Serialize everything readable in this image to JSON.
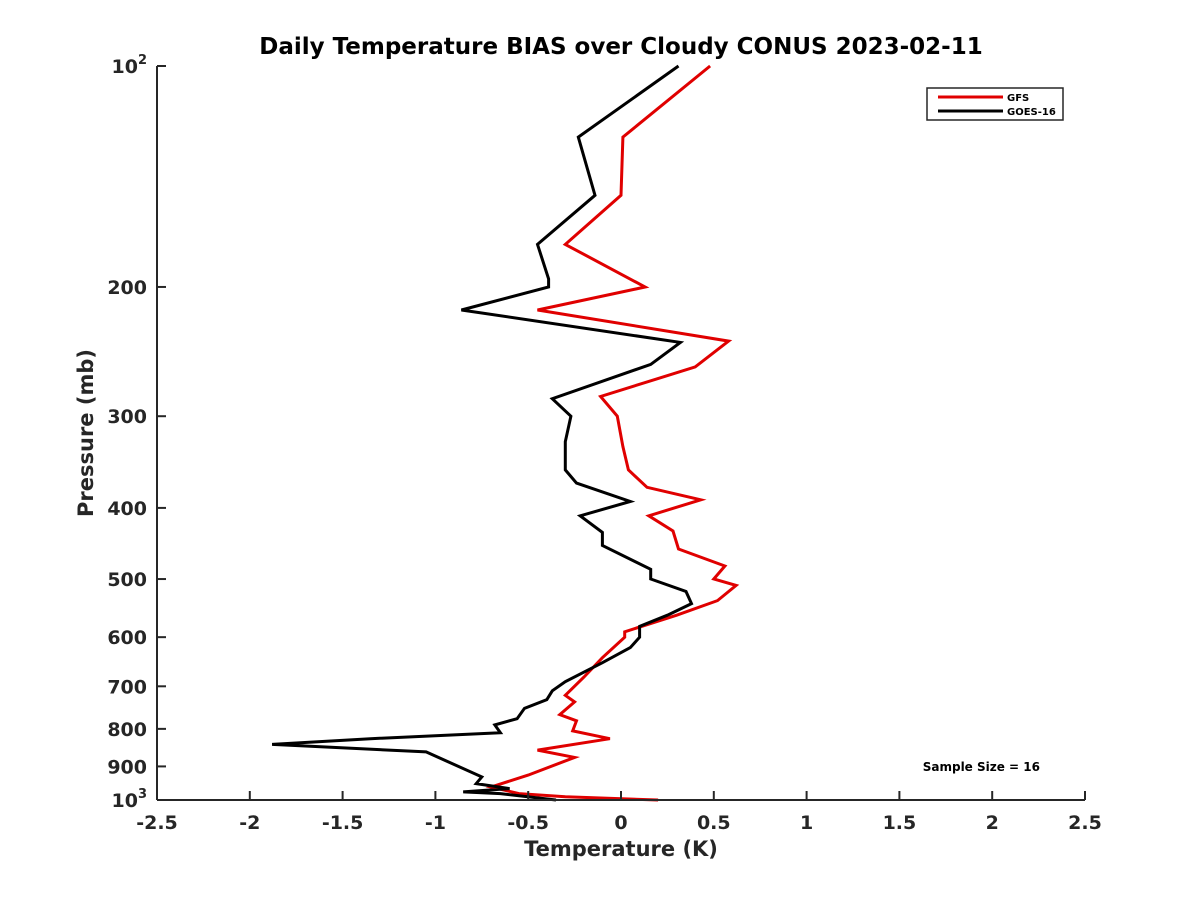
{
  "chart_data": {
    "type": "line",
    "title": "Daily Temperature BIAS over Cloudy CONUS 2023-02-11",
    "xlabel": "Temperature (K)",
    "ylabel": "Pressure (mb)",
    "xlim": [
      -2.5,
      2.5
    ],
    "ylim": [
      100,
      1000
    ],
    "y_scale": "log",
    "y_reversed": true,
    "grid": false,
    "legend_position": "top-right",
    "x_ticks": [
      -2.5,
      -2,
      -1.5,
      -1,
      -0.5,
      0,
      0.5,
      1,
      1.5,
      2,
      2.5
    ],
    "x_tick_labels": [
      "-2.5",
      "-2",
      "-1.5",
      "-1",
      "-0.5",
      "0",
      "0.5",
      "1",
      "1.5",
      "2",
      "2.5"
    ],
    "y_ticks": [
      100,
      200,
      300,
      400,
      500,
      600,
      700,
      800,
      900,
      1000
    ],
    "y_tick_labels": [
      {
        "base": "10",
        "exp": "2"
      },
      {
        "base": "200",
        "exp": ""
      },
      {
        "base": "300",
        "exp": ""
      },
      {
        "base": "400",
        "exp": ""
      },
      {
        "base": "500",
        "exp": ""
      },
      {
        "base": "600",
        "exp": ""
      },
      {
        "base": "700",
        "exp": ""
      },
      {
        "base": "800",
        "exp": ""
      },
      {
        "base": "900",
        "exp": ""
      },
      {
        "base": "10",
        "exp": "3"
      }
    ],
    "annotation": "Sample Size = 16",
    "series": [
      {
        "name": "GFS",
        "color": "#e00000",
        "points": [
          [
            0.48,
            100
          ],
          [
            0.01,
            125
          ],
          [
            0.0,
            150
          ],
          [
            -0.3,
            175
          ],
          [
            0.13,
            200
          ],
          [
            -0.45,
            215
          ],
          [
            0.58,
            237
          ],
          [
            0.4,
            257
          ],
          [
            -0.11,
            282
          ],
          [
            -0.02,
            300
          ],
          [
            0.01,
            330
          ],
          [
            0.04,
            355
          ],
          [
            0.14,
            375
          ],
          [
            0.43,
            390
          ],
          [
            0.15,
            410
          ],
          [
            0.28,
            430
          ],
          [
            0.31,
            455
          ],
          [
            0.56,
            480
          ],
          [
            0.5,
            500
          ],
          [
            0.62,
            510
          ],
          [
            0.52,
            535
          ],
          [
            0.3,
            560
          ],
          [
            0.02,
            590
          ],
          [
            0.02,
            600
          ],
          [
            -0.1,
            640
          ],
          [
            -0.2,
            680
          ],
          [
            -0.3,
            720
          ],
          [
            -0.25,
            735
          ],
          [
            -0.33,
            765
          ],
          [
            -0.24,
            780
          ],
          [
            -0.26,
            805
          ],
          [
            -0.06,
            825
          ],
          [
            -0.45,
            855
          ],
          [
            -0.25,
            875
          ],
          [
            -0.5,
            925
          ],
          [
            -0.7,
            960
          ],
          [
            -0.55,
            980
          ],
          [
            -0.3,
            990
          ],
          [
            0.2,
            1000
          ]
        ]
      },
      {
        "name": "GOES-16",
        "color": "#000000",
        "points": [
          [
            0.31,
            100
          ],
          [
            -0.23,
            125
          ],
          [
            -0.14,
            150
          ],
          [
            -0.45,
            175
          ],
          [
            -0.39,
            195
          ],
          [
            -0.39,
            200
          ],
          [
            -0.86,
            215
          ],
          [
            0.32,
            238
          ],
          [
            0.16,
            255
          ],
          [
            -0.37,
            284
          ],
          [
            -0.27,
            300
          ],
          [
            -0.3,
            325
          ],
          [
            -0.3,
            355
          ],
          [
            -0.24,
            370
          ],
          [
            0.05,
            392
          ],
          [
            -0.22,
            410
          ],
          [
            -0.1,
            432
          ],
          [
            -0.1,
            450
          ],
          [
            0.16,
            485
          ],
          [
            0.16,
            500
          ],
          [
            0.35,
            520
          ],
          [
            0.38,
            540
          ],
          [
            0.25,
            560
          ],
          [
            0.1,
            580
          ],
          [
            0.1,
            600
          ],
          [
            0.05,
            620
          ],
          [
            -0.1,
            650
          ],
          [
            -0.3,
            690
          ],
          [
            -0.37,
            710
          ],
          [
            -0.4,
            730
          ],
          [
            -0.52,
            750
          ],
          [
            -0.56,
            775
          ],
          [
            -0.68,
            790
          ],
          [
            -0.65,
            810
          ],
          [
            -1.35,
            825
          ],
          [
            -1.88,
            840
          ],
          [
            -1.05,
            860
          ],
          [
            -0.75,
            930
          ],
          [
            -0.78,
            950
          ],
          [
            -0.6,
            965
          ],
          [
            -0.85,
            975
          ],
          [
            -0.65,
            980
          ],
          [
            -0.35,
            1000
          ]
        ]
      }
    ]
  }
}
